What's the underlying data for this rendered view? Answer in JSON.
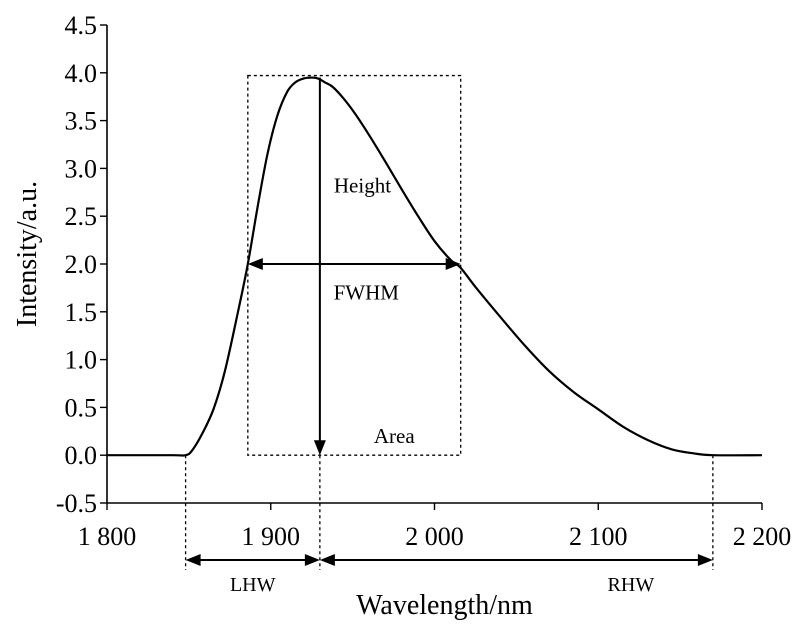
{
  "chart_data": {
    "type": "line",
    "title": "",
    "xlabel": "Wavelength/nm",
    "ylabel": "Intensity/a.u.",
    "xlim": [
      1800,
      2200
    ],
    "ylim": [
      -0.5,
      4.5
    ],
    "x_ticks": [
      1800,
      1900,
      2000,
      2100,
      2200
    ],
    "x_tick_labels": [
      "1 800",
      "1 900",
      "2 000",
      "2 100",
      "2 200"
    ],
    "y_ticks": [
      -0.5,
      0,
      0.5,
      1,
      1.5,
      2,
      2.5,
      3,
      3.5,
      4,
      4.5
    ],
    "y_tick_labels": [
      "-0.5",
      "0.0",
      "0.5",
      "1.0",
      "1.5",
      "2.0",
      "2.5",
      "3.0",
      "3.5",
      "4.0",
      "4.5"
    ],
    "grid": false,
    "series": [
      {
        "x": [
          1800,
          1840,
          1848,
          1852,
          1858,
          1865,
          1872,
          1880,
          1886,
          1892,
          1898,
          1904,
          1910,
          1915,
          1920,
          1925,
          1929,
          1933,
          1938,
          1945,
          1952,
          1960,
          1970,
          1980,
          1990,
          2000,
          2010,
          2016,
          2025,
          2040,
          2055,
          2070,
          2085,
          2100,
          2115,
          2130,
          2145,
          2158,
          2170,
          2200
        ],
        "y": [
          0,
          0,
          0,
          0.05,
          0.22,
          0.48,
          0.88,
          1.5,
          2.0,
          2.6,
          3.15,
          3.55,
          3.8,
          3.9,
          3.94,
          3.95,
          3.94,
          3.9,
          3.85,
          3.72,
          3.56,
          3.35,
          3.07,
          2.78,
          2.5,
          2.24,
          2.04,
          1.96,
          1.76,
          1.45,
          1.15,
          0.88,
          0.66,
          0.48,
          0.3,
          0.16,
          0.06,
          0.02,
          0,
          0
        ]
      }
    ],
    "annotations": {
      "height_label": "Height",
      "fwhm_label": "FWHM",
      "area_label": "Area",
      "lhw_label": "LHW",
      "rhw_label": "RHW",
      "peak": {
        "x": 1930,
        "y": 3.95
      },
      "half_max": 2.0,
      "fwhm_left_x": 1886,
      "fwhm_right_x": 2016,
      "baseline_start_x": 1848,
      "baseline_end_x": 2170
    }
  }
}
